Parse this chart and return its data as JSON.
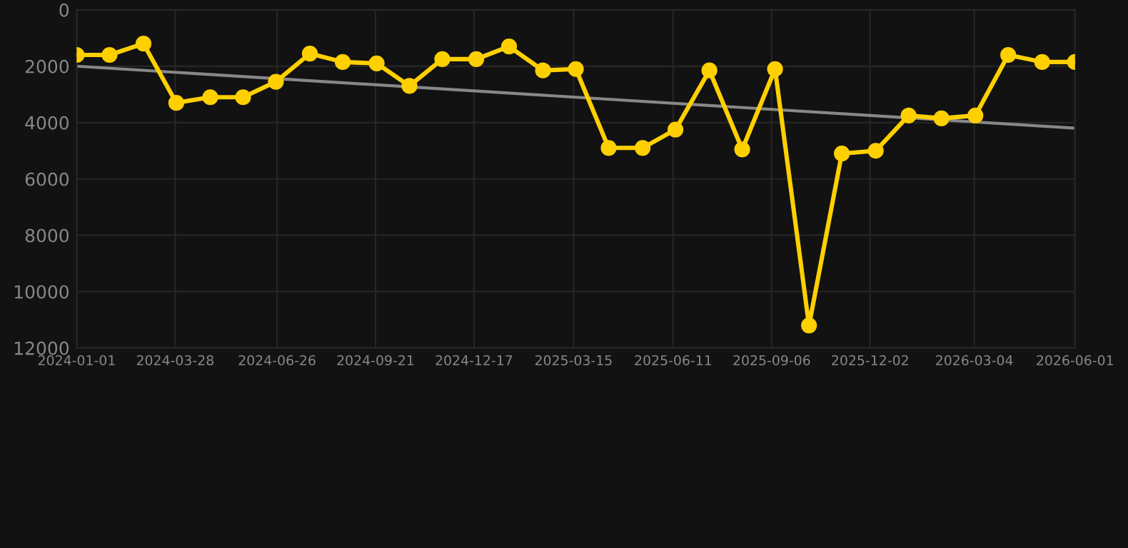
{
  "chart_data": {
    "type": "line",
    "x": [
      "2024-01-01",
      "2024-01-30",
      "2024-02-29",
      "2024-03-29",
      "2024-04-28",
      "2024-05-27",
      "2024-06-25",
      "2024-07-25",
      "2024-08-23",
      "2024-09-22",
      "2024-10-21",
      "2024-11-19",
      "2024-12-19",
      "2025-01-17",
      "2025-02-16",
      "2025-03-17",
      "2025-04-15",
      "2025-05-15",
      "2025-06-13",
      "2025-07-13",
      "2025-08-11",
      "2025-09-09",
      "2025-10-09",
      "2025-11-07",
      "2025-12-07",
      "2026-01-05",
      "2026-02-03",
      "2026-03-05",
      "2026-04-03",
      "2026-05-03",
      "2026-06-01"
    ],
    "series": [
      {
        "color": "#ffd000",
        "marker": "circle",
        "values": [
          1600,
          1600,
          1200,
          3300,
          3100,
          3100,
          2550,
          1550,
          1850,
          1900,
          2700,
          1750,
          1750,
          1300,
          2150,
          2100,
          4900,
          4900,
          4250,
          2150,
          4950,
          2100,
          11200,
          5100,
          5000,
          3750,
          3850,
          3750,
          1600,
          1850,
          1850
        ]
      },
      {
        "type": "line",
        "color": "#888888",
        "marker": "none",
        "x": [
          "2024-01-01",
          "2026-06-01"
        ],
        "values": [
          2000,
          4200
        ]
      }
    ],
    "ylim": [
      12000,
      0
    ],
    "yticks": [
      0,
      2000,
      4000,
      6000,
      8000,
      10000,
      12000
    ],
    "xlim": [
      "2024-01-01",
      "2026-06-01"
    ],
    "xticks": [
      {
        "value": "2024-01-01",
        "label": "2024-01-01"
      },
      {
        "value": "2024-03-28",
        "label": "2024-03-28"
      },
      {
        "value": "2024-06-26",
        "label": "2024-06-26"
      },
      {
        "value": "2024-09-21",
        "label": "2024-09-21"
      },
      {
        "value": "2024-12-17",
        "label": "2024-12-17"
      },
      {
        "value": "2025-03-15",
        "label": "2025-03-15"
      },
      {
        "value": "2025-06-11",
        "label": "2025-06-11"
      },
      {
        "value": "2025-09-06",
        "label": "2025-09-06"
      },
      {
        "value": "2025-12-02",
        "label": "2025-12-02"
      },
      {
        "value": "2026-03-04",
        "label": "2026-03-04"
      },
      {
        "value": "2026-06-01",
        "label": "2026-06-01"
      }
    ],
    "grid": true
  }
}
